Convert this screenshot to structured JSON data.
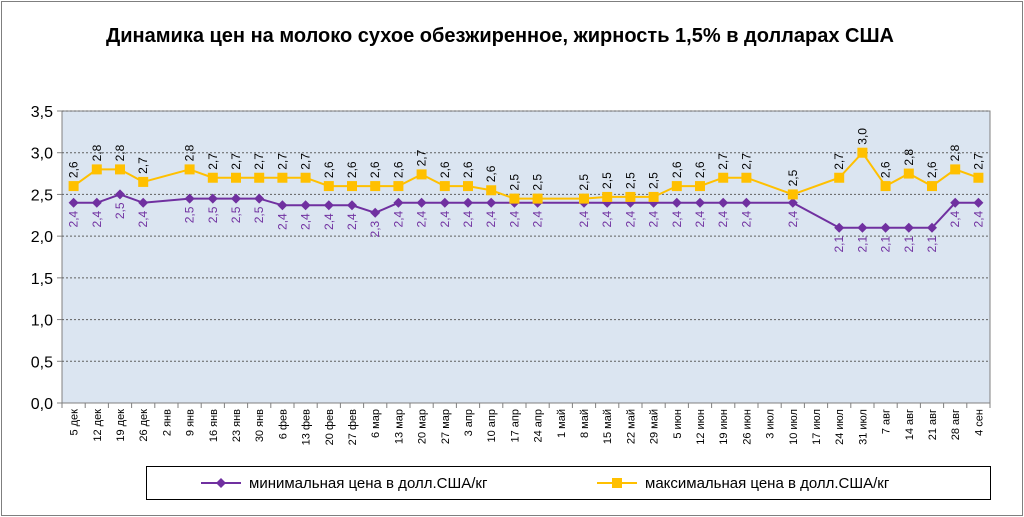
{
  "chart_data": {
    "type": "line",
    "title": "Динамика цен на молоко сухое обезжиренное, жирность 1,5%  в долларах США",
    "categories": [
      "5 дек",
      "12 дек",
      "19 дек",
      "26 дек",
      "2 янв",
      "9 янв",
      "16 янв",
      "23 янв",
      "30 янв",
      "6 фев",
      "13 фев",
      "20 фев",
      "27 фев",
      "6 мар",
      "13 мар",
      "20 мар",
      "27 мар",
      "3 апр",
      "10 апр",
      "17 апр",
      "24 апр",
      "1 май",
      "8 май",
      "15 май",
      "22 май",
      "29 май",
      "5 июн",
      "12 июн",
      "19 июн",
      "26 июн",
      "3 июл",
      "10 июл",
      "17 июл",
      "24 июл",
      "31 июл",
      "7 авг",
      "14 авг",
      "21 авг",
      "28 авг",
      "4 сен"
    ],
    "ylim": [
      0,
      3.5
    ],
    "yticks": [
      "0,0",
      "0,5",
      "1,0",
      "1,5",
      "2,0",
      "2,5",
      "3,0",
      "3,5"
    ],
    "grid": "horizontal",
    "legend_placement": "bottom",
    "plot_background": "#dbe5f1",
    "series": [
      {
        "name": "минимальная цена в долл.США/кг",
        "color": "#7030a0",
        "marker": "diamond",
        "values": [
          2.4,
          2.4,
          2.5,
          2.4,
          null,
          2.45,
          2.45,
          2.45,
          2.45,
          2.37,
          2.37,
          2.37,
          2.37,
          2.28,
          2.4,
          2.4,
          2.4,
          2.4,
          2.4,
          2.4,
          2.4,
          null,
          2.4,
          2.4,
          2.4,
          2.4,
          2.4,
          2.4,
          2.4,
          2.4,
          null,
          2.4,
          null,
          2.1,
          2.1,
          2.1,
          2.1,
          2.1,
          2.4,
          2.4
        ],
        "labels": [
          "2,4",
          "2,4",
          "2,5",
          "2,4",
          "",
          "2,5",
          "2,5",
          "2,5",
          "2,5",
          "2,4",
          "2,4",
          "2,4",
          "2,4",
          "2,3",
          "2,4",
          "2,4",
          "2,4",
          "2,4",
          "2,4",
          "2,4",
          "2,4",
          "",
          "2,4",
          "2,4",
          "2,4",
          "2,4",
          "2,4",
          "2,4",
          "2,4",
          "2,4",
          "",
          "2,4",
          "",
          "2,1",
          "2,1",
          "2,1",
          "2,1",
          "2,1",
          "2,4",
          "2,4"
        ]
      },
      {
        "name": "максимальная цена в долл.США/кг",
        "color": "#ffc000",
        "marker": "square",
        "values": [
          2.6,
          2.8,
          2.8,
          2.65,
          null,
          2.8,
          2.7,
          2.7,
          2.7,
          2.7,
          2.7,
          2.6,
          2.6,
          2.6,
          2.6,
          2.74,
          2.6,
          2.6,
          2.55,
          2.45,
          2.45,
          null,
          2.45,
          2.47,
          2.47,
          2.47,
          2.6,
          2.6,
          2.7,
          2.7,
          null,
          2.5,
          null,
          2.7,
          3.0,
          2.6,
          2.75,
          2.6,
          2.8,
          2.7
        ],
        "labels": [
          "2,6",
          "2,8",
          "2,8",
          "2,7",
          "",
          "2,8",
          "2,7",
          "2,7",
          "2,7",
          "2,7",
          "2,7",
          "2,6",
          "2,6",
          "2,6",
          "2,6",
          "2,7",
          "2,6",
          "2,6",
          "2,6",
          "2,5",
          "2,5",
          "",
          "2,5",
          "2,5",
          "2,5",
          "2,5",
          "2,6",
          "2,6",
          "2,7",
          "2,7",
          "",
          "2,5",
          "",
          "2,7",
          "3,0",
          "2,6",
          "2,8",
          "2,6",
          "2,8",
          "2,7"
        ]
      }
    ]
  }
}
